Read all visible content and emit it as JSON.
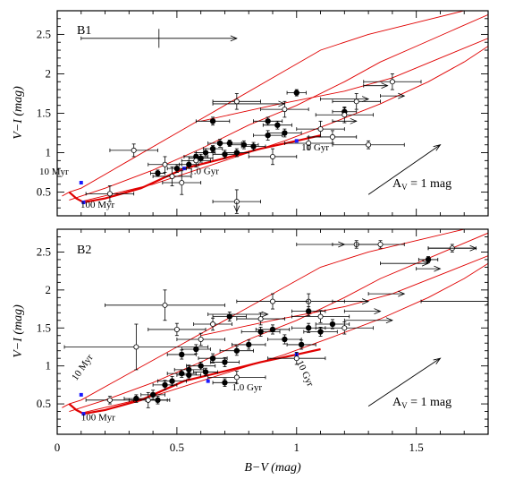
{
  "chart_data": [
    {
      "type": "scatter",
      "panel_label": "B1",
      "xlabel": "",
      "ylabel": "V−I (mag)",
      "xlim": [
        0,
        1.8
      ],
      "ylim": [
        0.2,
        2.8
      ],
      "x_ticks": [
        "",
        "",
        "",
        ""
      ],
      "y_ticks": [
        "0.5",
        "1",
        "1.5",
        "2",
        "2.5"
      ],
      "age_labels": [
        "10 Myr",
        "100 Myr",
        "1.0 Gyr",
        "10 Gyr"
      ],
      "reddening_label": "A",
      "reddening_sub": "V",
      "reddening_value": " = 1 mag",
      "reddening_vector": {
        "from": [
          1.3,
          0.47
        ],
        "to": [
          1.6,
          1.1
        ]
      },
      "age_markers": [
        [
          0.1,
          0.62
        ],
        [
          0.11,
          0.37
        ],
        [
          0.53,
          0.8
        ],
        [
          1.0,
          1.15
        ]
      ],
      "series": [
        {
          "marker": "filled",
          "points": [
            {
              "x": 0.42,
              "y": 0.74,
              "xerr": 0.03,
              "yerr": 0.04
            },
            {
              "x": 0.5,
              "y": 0.8,
              "xerr": 0.04,
              "yerr": 0.05
            },
            {
              "x": 0.55,
              "y": 0.85,
              "xerr": 0.04,
              "yerr": 0.05
            },
            {
              "x": 0.58,
              "y": 0.95,
              "xerr": 0.05,
              "yerr": 0.05
            },
            {
              "x": 0.62,
              "y": 1.0,
              "xerr": 0.04,
              "yerr": 0.05
            },
            {
              "x": 0.65,
              "y": 1.05,
              "xerr": 0.04,
              "yerr": 0.04
            },
            {
              "x": 0.68,
              "y": 1.12,
              "xerr": 0.05,
              "yerr": 0.05
            },
            {
              "x": 0.72,
              "y": 1.12,
              "xerr": 0.05,
              "yerr": 0.04
            },
            {
              "x": 0.75,
              "y": 1.0,
              "xerr": 0.05,
              "yerr": 0.05
            },
            {
              "x": 0.78,
              "y": 1.1,
              "xerr": 0.06,
              "yerr": 0.05
            },
            {
              "x": 0.82,
              "y": 1.08,
              "xerr": 0.05,
              "yerr": 0.05
            },
            {
              "x": 0.88,
              "y": 1.22,
              "xerr": 0.06,
              "yerr": 0.06
            },
            {
              "x": 0.92,
              "y": 1.35,
              "xerr": 0.06,
              "yerr": 0.05
            },
            {
              "x": 0.95,
              "y": 1.25,
              "xerr": 0.07,
              "yerr": 0.05
            },
            {
              "x": 0.65,
              "y": 1.4,
              "xerr": 0.07,
              "yerr": 0.05
            },
            {
              "x": 0.88,
              "y": 1.4,
              "xerr": 0.06,
              "yerr": 0.05
            },
            {
              "x": 1.0,
              "y": 1.76,
              "xerr": 0.04,
              "yerr": 0.04
            },
            {
              "x": 1.2,
              "y": 1.52,
              "xerr": 0.05,
              "yerr": 0.05
            },
            {
              "x": 0.6,
              "y": 0.93,
              "xerr": 0.05,
              "yerr": 0.05
            },
            {
              "x": 0.7,
              "y": 0.98,
              "xerr": 0.05,
              "yerr": 0.05
            }
          ]
        },
        {
          "marker": "open",
          "points": [
            {
              "x": 0.22,
              "y": 0.48,
              "xerr": 0.1,
              "yerr": 0.1
            },
            {
              "x": 0.32,
              "y": 1.03,
              "xerr": 0.1,
              "yerr": 0.08
            },
            {
              "x": 0.45,
              "y": 0.85,
              "xerr": 0.07,
              "yerr": 0.1
            },
            {
              "x": 0.48,
              "y": 0.7,
              "xerr": 0.08,
              "yerr": 0.12
            },
            {
              "x": 0.52,
              "y": 0.62,
              "xerr": 0.08,
              "yerr": 0.15
            },
            {
              "x": 0.58,
              "y": 0.9,
              "xerr": 0.06,
              "yerr": 0.08
            },
            {
              "x": 0.75,
              "y": 0.38,
              "xerr": 0.1,
              "yerr": 0.15
            },
            {
              "x": 0.75,
              "y": 1.65,
              "xerr": 0.1,
              "yerr": 0.1
            },
            {
              "x": 0.95,
              "y": 1.55,
              "xerr": 0.1,
              "yerr": 0.1
            },
            {
              "x": 1.05,
              "y": 1.12,
              "xerr": 0.1,
              "yerr": 0.08
            },
            {
              "x": 1.1,
              "y": 1.3,
              "xerr": 0.1,
              "yerr": 0.1
            },
            {
              "x": 1.2,
              "y": 1.48,
              "xerr": 0.12,
              "yerr": 0.1
            },
            {
              "x": 1.25,
              "y": 1.65,
              "xerr": 0.1,
              "yerr": 0.1
            },
            {
              "x": 1.3,
              "y": 1.1,
              "xerr": 0.15,
              "yerr": 0.05
            },
            {
              "x": 1.4,
              "y": 1.9,
              "xerr": 0.12,
              "yerr": 0.1
            },
            {
              "x": 0.9,
              "y": 0.95,
              "xerr": 0.1,
              "yerr": 0.1
            },
            {
              "x": 1.15,
              "y": 1.2,
              "xerr": 0.1,
              "yerr": 0.08
            }
          ]
        }
      ],
      "lower_limits": [
        {
          "x": 0.75,
          "y": 2.45,
          "xmin": 0.65,
          "yerr": 0.12
        },
        {
          "x": 1.3,
          "y": 1.68,
          "xmin": 0.2
        },
        {
          "x": 1.38,
          "y": 1.85,
          "xmin": 0.1
        },
        {
          "x": 1.45,
          "y": 1.72,
          "xmin": 0.1
        },
        {
          "x": 1.25,
          "y": 1.4,
          "xmin": 0.1
        },
        {
          "x": 0.95,
          "y": 1.62,
          "xmin": 0.3
        }
      ],
      "upper_limits": [
        {
          "x": 0.75,
          "y": 0.38,
          "yto": 0.25
        }
      ]
    },
    {
      "type": "scatter",
      "panel_label": "B2",
      "xlabel": "B−V (mag)",
      "ylabel": "V−I (mag)",
      "xlim": [
        0,
        1.8
      ],
      "ylim": [
        0.1,
        2.8
      ],
      "x_ticks": [
        "0",
        "0.5",
        "1",
        "1.5"
      ],
      "y_ticks": [
        "0.5",
        "1",
        "1.5",
        "2",
        "2.5"
      ],
      "age_labels": [
        "10 Myr",
        "100 Myr",
        "1.0 Gyr",
        "10 Gyr"
      ],
      "reddening_label": "A",
      "reddening_sub": "V",
      "reddening_value": " = 1 mag",
      "reddening_vector": {
        "from": [
          1.3,
          0.47
        ],
        "to": [
          1.6,
          1.1
        ]
      },
      "age_markers": [
        [
          0.1,
          0.62
        ],
        [
          0.11,
          0.37
        ],
        [
          0.63,
          0.8
        ],
        [
          1.0,
          1.15
        ]
      ],
      "series": [
        {
          "marker": "filled",
          "points": [
            {
              "x": 0.33,
              "y": 0.57,
              "xerr": 0.05,
              "yerr": 0.05
            },
            {
              "x": 0.4,
              "y": 0.62,
              "xerr": 0.05,
              "yerr": 0.06
            },
            {
              "x": 0.45,
              "y": 0.75,
              "xerr": 0.05,
              "yerr": 0.06
            },
            {
              "x": 0.48,
              "y": 0.8,
              "xerr": 0.06,
              "yerr": 0.06
            },
            {
              "x": 0.52,
              "y": 0.9,
              "xerr": 0.06,
              "yerr": 0.05
            },
            {
              "x": 0.55,
              "y": 0.95,
              "xerr": 0.06,
              "yerr": 0.06
            },
            {
              "x": 0.6,
              "y": 1.0,
              "xerr": 0.06,
              "yerr": 0.05
            },
            {
              "x": 0.62,
              "y": 0.92,
              "xerr": 0.05,
              "yerr": 0.05
            },
            {
              "x": 0.65,
              "y": 1.1,
              "xerr": 0.06,
              "yerr": 0.06
            },
            {
              "x": 0.7,
              "y": 1.05,
              "xerr": 0.06,
              "yerr": 0.06
            },
            {
              "x": 0.75,
              "y": 1.2,
              "xerr": 0.07,
              "yerr": 0.06
            },
            {
              "x": 0.8,
              "y": 1.28,
              "xerr": 0.07,
              "yerr": 0.06
            },
            {
              "x": 0.85,
              "y": 1.45,
              "xerr": 0.08,
              "yerr": 0.06
            },
            {
              "x": 0.9,
              "y": 1.48,
              "xerr": 0.07,
              "yerr": 0.06
            },
            {
              "x": 0.95,
              "y": 1.35,
              "xerr": 0.07,
              "yerr": 0.06
            },
            {
              "x": 1.02,
              "y": 1.28,
              "xerr": 0.06,
              "yerr": 0.06
            },
            {
              "x": 1.05,
              "y": 1.5,
              "xerr": 0.07,
              "yerr": 0.06
            },
            {
              "x": 1.1,
              "y": 1.45,
              "xerr": 0.07,
              "yerr": 0.06
            },
            {
              "x": 1.15,
              "y": 1.55,
              "xerr": 0.07,
              "yerr": 0.06
            },
            {
              "x": 0.52,
              "y": 1.15,
              "xerr": 0.06,
              "yerr": 0.06
            },
            {
              "x": 0.58,
              "y": 1.22,
              "xerr": 0.06,
              "yerr": 0.06
            },
            {
              "x": 0.72,
              "y": 1.65,
              "xerr": 0.07,
              "yerr": 0.06
            },
            {
              "x": 0.7,
              "y": 0.78,
              "xerr": 0.05,
              "yerr": 0.05
            },
            {
              "x": 0.42,
              "y": 0.55,
              "xerr": 0.05,
              "yerr": 0.05
            },
            {
              "x": 1.55,
              "y": 2.4,
              "xerr": 0.04,
              "yerr": 0.04
            },
            {
              "x": 1.05,
              "y": 1.72,
              "xerr": 0.07,
              "yerr": 0.06
            },
            {
              "x": 0.55,
              "y": 0.88,
              "xerr": 0.05,
              "yerr": 0.05
            }
          ]
        },
        {
          "marker": "open",
          "points": [
            {
              "x": 0.22,
              "y": 0.55,
              "xerr": 0.1,
              "yerr": 0.05
            },
            {
              "x": 0.33,
              "y": 1.25,
              "xerr": 0.3,
              "yerr": 0.3
            },
            {
              "x": 0.38,
              "y": 0.55,
              "xerr": 0.08,
              "yerr": 0.1
            },
            {
              "x": 0.45,
              "y": 1.8,
              "xerr": 0.25,
              "yerr": 0.2
            },
            {
              "x": 0.6,
              "y": 1.35,
              "xerr": 0.1,
              "yerr": 0.08
            },
            {
              "x": 0.65,
              "y": 1.55,
              "xerr": 0.08,
              "yerr": 0.08
            },
            {
              "x": 0.75,
              "y": 0.85,
              "xerr": 0.12,
              "yerr": 0.08
            },
            {
              "x": 0.85,
              "y": 1.62,
              "xerr": 0.1,
              "yerr": 0.08
            },
            {
              "x": 1.0,
              "y": 1.1,
              "xerr": 0.12,
              "yerr": 0.08
            },
            {
              "x": 1.05,
              "y": 1.85,
              "xerr": 0.15,
              "yerr": 0.1
            },
            {
              "x": 1.1,
              "y": 1.65,
              "xerr": 0.12,
              "yerr": 0.08
            },
            {
              "x": 1.2,
              "y": 1.5,
              "xerr": 0.12,
              "yerr": 0.08
            },
            {
              "x": 1.25,
              "y": 2.6,
              "xerr": 0.1,
              "yerr": 0.05
            },
            {
              "x": 1.35,
              "y": 2.6,
              "xerr": 0.1,
              "yerr": 0.05
            },
            {
              "x": 1.65,
              "y": 2.55,
              "xerr": 0.1,
              "yerr": 0.05
            },
            {
              "x": 0.9,
              "y": 1.85,
              "xerr": 0.15,
              "yerr": 0.1
            },
            {
              "x": 0.5,
              "y": 1.48,
              "xerr": 0.12,
              "yerr": 0.08
            }
          ]
        }
      ],
      "lower_limits": [
        {
          "x": 1.2,
          "y": 2.6,
          "xmin": 0.2
        },
        {
          "x": 1.55,
          "y": 2.35,
          "xmin": 0.2
        },
        {
          "x": 1.6,
          "y": 2.28,
          "xmin": 0.1
        },
        {
          "x": 1.75,
          "y": 2.55,
          "xmin": 0.2
        },
        {
          "x": 1.35,
          "y": 1.72,
          "xmin": 0.15
        },
        {
          "x": 1.45,
          "y": 1.95,
          "xmin": 0.15
        },
        {
          "x": 1.4,
          "y": 1.6,
          "xmin": 0.2
        },
        {
          "x": 1.3,
          "y": 1.85,
          "xmin": 0.15
        },
        {
          "x": 0.88,
          "y": 1.68,
          "xmin": 0.25
        },
        {
          "x": 1.82,
          "y": 1.85,
          "xmin": 0.3
        }
      ],
      "upper_limits": []
    }
  ]
}
